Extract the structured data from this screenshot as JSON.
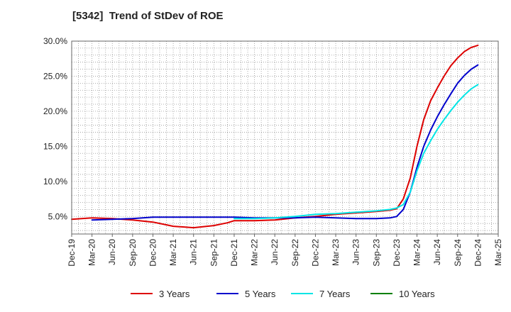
{
  "chart_data": {
    "type": "line",
    "title": "[5342]  Trend of StDev of ROE",
    "x_labels": [
      "Dec-19",
      "Mar-20",
      "Jun-20",
      "Sep-20",
      "Dec-20",
      "Mar-21",
      "Jun-21",
      "Sep-21",
      "Dec-21",
      "Mar-22",
      "Jun-22",
      "Sep-22",
      "Dec-22",
      "Mar-23",
      "Jun-23",
      "Sep-23",
      "Dec-23",
      "Mar-24",
      "Jun-24",
      "Sep-24",
      "Dec-24",
      "Mar-25"
    ],
    "y_ticks": [
      "5.0%",
      "10.0%",
      "15.0%",
      "20.0%",
      "25.0%",
      "30.0%"
    ],
    "ylim": [
      2.5,
      30
    ],
    "grid": true,
    "legend_position": "bottom",
    "series": [
      {
        "name": "3 Years",
        "color": "#dd0000",
        "points": [
          [
            0,
            4.6
          ],
          [
            1,
            4.8
          ],
          [
            2,
            4.7
          ],
          [
            3,
            4.5
          ],
          [
            4,
            4.2
          ],
          [
            4.67,
            3.8
          ],
          [
            5,
            3.6
          ],
          [
            6,
            3.4
          ],
          [
            7,
            3.7
          ],
          [
            7.67,
            4.1
          ],
          [
            8,
            4.4
          ],
          [
            9,
            4.4
          ],
          [
            10,
            4.5
          ],
          [
            10.67,
            4.7
          ],
          [
            11,
            4.8
          ],
          [
            12,
            5.0
          ],
          [
            13,
            5.3
          ],
          [
            14,
            5.5
          ],
          [
            15,
            5.7
          ],
          [
            15.67,
            5.9
          ],
          [
            16,
            6.1
          ],
          [
            16.33,
            7.5
          ],
          [
            16.67,
            10.5
          ],
          [
            17,
            15.0
          ],
          [
            17.33,
            18.8
          ],
          [
            17.67,
            21.5
          ],
          [
            18,
            23.3
          ],
          [
            18.33,
            25.0
          ],
          [
            18.67,
            26.5
          ],
          [
            19,
            27.6
          ],
          [
            19.33,
            28.5
          ],
          [
            19.67,
            29.1
          ],
          [
            20,
            29.4
          ]
        ]
      },
      {
        "name": "5 Years",
        "color": "#0000cc",
        "points": [
          [
            1,
            4.5
          ],
          [
            2,
            4.6
          ],
          [
            3,
            4.7
          ],
          [
            4,
            4.9
          ],
          [
            5,
            4.9
          ],
          [
            6,
            4.9
          ],
          [
            7,
            4.9
          ],
          [
            8,
            4.9
          ],
          [
            9,
            4.8
          ],
          [
            10,
            4.8
          ],
          [
            11,
            4.8
          ],
          [
            12,
            4.9
          ],
          [
            13,
            4.8
          ],
          [
            14,
            4.7
          ],
          [
            15,
            4.7
          ],
          [
            15.67,
            4.8
          ],
          [
            16,
            5.0
          ],
          [
            16.33,
            6.0
          ],
          [
            16.67,
            8.5
          ],
          [
            17,
            12.0
          ],
          [
            17.33,
            15.0
          ],
          [
            17.67,
            17.3
          ],
          [
            18,
            19.2
          ],
          [
            18.33,
            20.9
          ],
          [
            18.67,
            22.5
          ],
          [
            19,
            24.0
          ],
          [
            19.33,
            25.1
          ],
          [
            19.67,
            26.0
          ],
          [
            20,
            26.6
          ]
        ]
      },
      {
        "name": "7 Years",
        "color": "#00e5e5",
        "points": [
          [
            8,
            4.7
          ],
          [
            9,
            4.7
          ],
          [
            10,
            4.8
          ],
          [
            11,
            5.0
          ],
          [
            12,
            5.3
          ],
          [
            13,
            5.4
          ],
          [
            14,
            5.6
          ],
          [
            15,
            5.8
          ],
          [
            15.67,
            6.0
          ],
          [
            16,
            6.2
          ],
          [
            16.33,
            6.7
          ],
          [
            16.67,
            8.5
          ],
          [
            17,
            11.5
          ],
          [
            17.33,
            14.0
          ],
          [
            17.67,
            15.8
          ],
          [
            18,
            17.4
          ],
          [
            18.33,
            18.8
          ],
          [
            18.67,
            20.1
          ],
          [
            19,
            21.3
          ],
          [
            19.33,
            22.3
          ],
          [
            19.67,
            23.2
          ],
          [
            20,
            23.8
          ]
        ]
      },
      {
        "name": "10 Years",
        "color": "#008000",
        "points": []
      }
    ]
  }
}
